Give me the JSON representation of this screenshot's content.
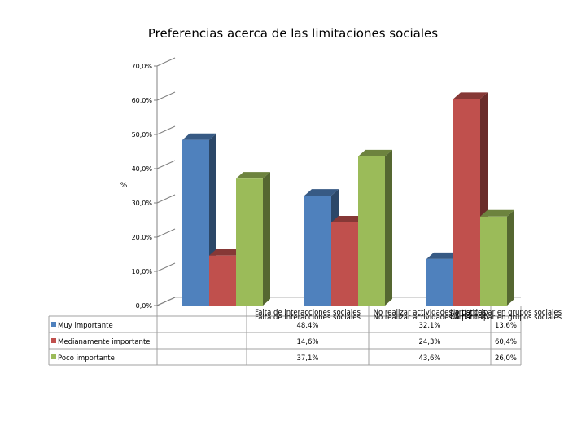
{
  "chart_data": {
    "type": "bar",
    "title": "Preferencias acerca de las limitaciones sociales",
    "ylabel": "%",
    "xlabel": "",
    "ylim": [
      0,
      70
    ],
    "yticks": [
      "0,0%",
      "10,0%",
      "20,0%",
      "30,0%",
      "40,0%",
      "50,0%",
      "60,0%",
      "70,0%"
    ],
    "categories": [
      "Falta de interacciones sociales",
      "No realizar actividades artísticas",
      "No participar en grupos sociales"
    ],
    "series": [
      {
        "name": "Muy importante",
        "color": "#4f81bd",
        "values": [
          48.4,
          32.1,
          13.6
        ],
        "labels": [
          "48,4%",
          "32,1%",
          "13,6%"
        ]
      },
      {
        "name": "Medianamente importante",
        "color": "#c0504d",
        "values": [
          14.6,
          24.3,
          60.4
        ],
        "labels": [
          "14,6%",
          "24,3%",
          "60,4%"
        ]
      },
      {
        "name": "Poco importante",
        "color": "#9bbb59",
        "values": [
          37.1,
          43.6,
          26.0
        ],
        "labels": [
          "37,1%",
          "43,6%",
          "26,0%"
        ]
      }
    ],
    "grid": true,
    "legend": "data-table",
    "style": "3d-clustered-column"
  }
}
